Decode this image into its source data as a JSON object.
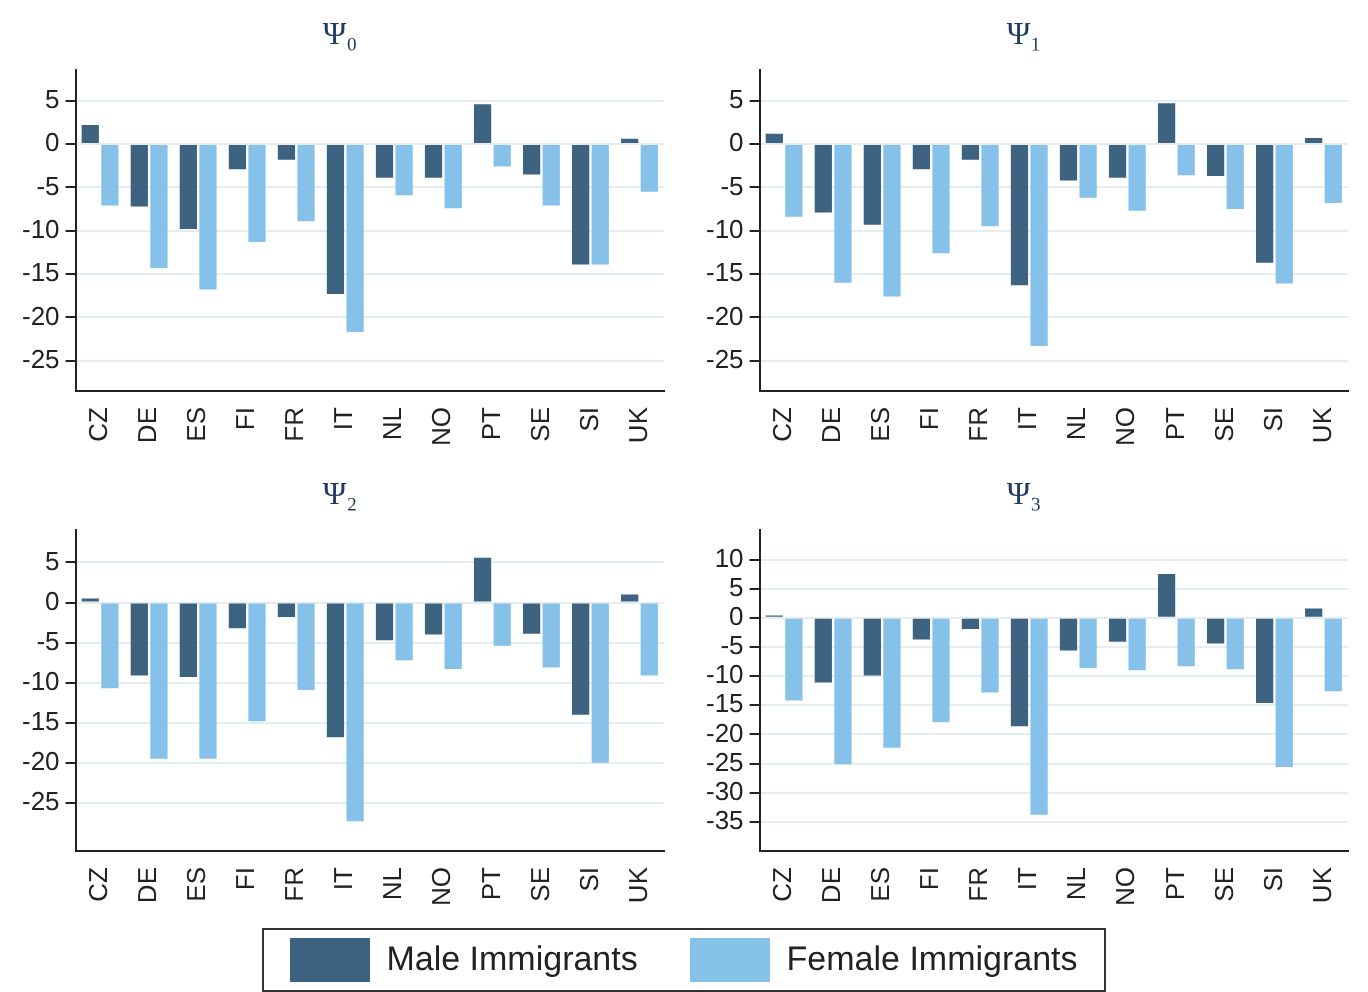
{
  "chart_data": [
    {
      "type": "bar",
      "title": "Ψ₀",
      "categories": [
        "CZ",
        "DE",
        "ES",
        "FI",
        "FR",
        "IT",
        "NL",
        "NO",
        "PT",
        "SE",
        "SI",
        "UK"
      ],
      "series": [
        {
          "name": "Male Immigrants",
          "color": "#3e6380",
          "values": [
            2.2,
            -7.2,
            -9.8,
            -2.9,
            -1.8,
            -17.3,
            -3.9,
            -3.9,
            4.6,
            -3.5,
            -13.9,
            0.6
          ]
        },
        {
          "name": "Female Immigrants",
          "color": "#85c1e9",
          "values": [
            -7.1,
            -14.3,
            -16.8,
            -11.3,
            -8.9,
            -21.7,
            -5.9,
            -7.4,
            -2.6,
            -7.1,
            -13.9,
            -5.5
          ]
        }
      ],
      "ylim": [
        -28.5,
        8.5
      ],
      "yticks": [
        -25,
        -20,
        -15,
        -10,
        -5,
        0,
        5
      ],
      "grid": "y",
      "legend": "bottom"
    },
    {
      "type": "bar",
      "title": "Ψ₁",
      "categories": [
        "CZ",
        "DE",
        "ES",
        "FI",
        "FR",
        "IT",
        "NL",
        "NO",
        "PT",
        "SE",
        "SI",
        "UK"
      ],
      "series": [
        {
          "color": "#3e6380",
          "values": [
            1.2,
            -7.9,
            -9.3,
            -2.9,
            -1.8,
            -16.3,
            -4.2,
            -3.9,
            4.7,
            -3.7,
            -13.7,
            0.7
          ]
        },
        {
          "color": "#85c1e9",
          "values": [
            -8.4,
            -16,
            -17.6,
            -12.6,
            -9.5,
            -23.3,
            -6.2,
            -7.7,
            -3.6,
            -7.5,
            -16.1,
            -6.8
          ]
        }
      ],
      "ylim": [
        -28.5,
        8.5
      ],
      "yticks": [
        -25,
        -20,
        -15,
        -10,
        -5,
        0,
        5
      ],
      "grid": "y"
    },
    {
      "type": "bar",
      "title": "Ψ₂",
      "categories": [
        "CZ",
        "DE",
        "ES",
        "FI",
        "FR",
        "IT",
        "NL",
        "NO",
        "PT",
        "SE",
        "SI",
        "UK"
      ],
      "series": [
        {
          "color": "#3e6380",
          "values": [
            0.5,
            -9.1,
            -9.3,
            -3.2,
            -1.8,
            -16.8,
            -4.7,
            -4,
            5.6,
            -3.9,
            -14,
            1
          ]
        },
        {
          "color": "#85c1e9",
          "values": [
            -10.7,
            -19.5,
            -19.5,
            -14.8,
            -10.9,
            -27.3,
            -7.2,
            -8.3,
            -5.4,
            -8.1,
            -20,
            -9.1
          ]
        }
      ],
      "ylim": [
        -31,
        9
      ],
      "yticks": [
        -25,
        -20,
        -15,
        -10,
        -5,
        0,
        5
      ],
      "grid": "y"
    },
    {
      "type": "bar",
      "title": "Ψ₃",
      "categories": [
        "CZ",
        "DE",
        "ES",
        "FI",
        "FR",
        "IT",
        "NL",
        "NO",
        "PT",
        "SE",
        "SI",
        "UK"
      ],
      "series": [
        {
          "color": "#3e6380",
          "values": [
            0.4,
            -11.1,
            -9.9,
            -3.7,
            -1.9,
            -18.6,
            -5.6,
            -4.1,
            7.5,
            -4.4,
            -14.6,
            1.6
          ]
        },
        {
          "color": "#85c1e9",
          "values": [
            -14.2,
            -25.1,
            -22.3,
            -17.9,
            -12.8,
            -33.8,
            -8.6,
            -9,
            -8.3,
            -8.8,
            -25.6,
            -12.6
          ]
        }
      ],
      "ylim": [
        -40,
        15
      ],
      "yticks": [
        -35,
        -30,
        -25,
        -20,
        -15,
        -10,
        -5,
        0,
        5,
        10
      ],
      "grid": "y"
    }
  ]
}
